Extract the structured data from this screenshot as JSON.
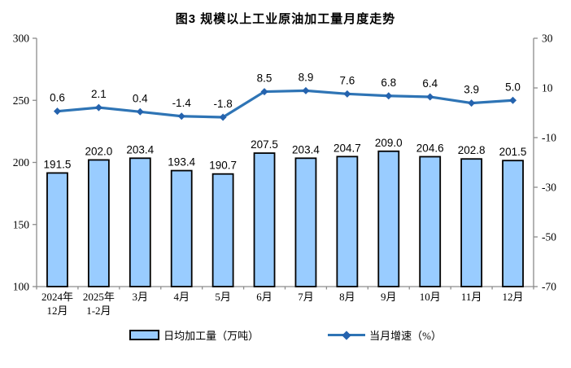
{
  "title": "图3  规模以上工业原油加工量月度走势",
  "chart_data": {
    "type": "bar",
    "subtype": "bar+line combo, dual y-axes",
    "categories": [
      "2024年\n12月",
      "2025年\n1-2月",
      "3月",
      "4月",
      "5月",
      "6月",
      "7月",
      "8月",
      "9月",
      "10月",
      "11月",
      "12月"
    ],
    "series": [
      {
        "name": "日均加工量（万吨）",
        "type": "bar",
        "axis": "left",
        "values": [
          191.5,
          202.0,
          203.4,
          193.4,
          190.7,
          207.5,
          203.4,
          204.7,
          209.0,
          204.6,
          202.8,
          201.5
        ],
        "labels": [
          "191.5",
          "202.0",
          "203.4",
          "193.4",
          "190.7",
          "207.5",
          "203.4",
          "204.7",
          "209.0",
          "204.6",
          "202.8",
          "201.5"
        ]
      },
      {
        "name": "当月增速（%）",
        "type": "line",
        "axis": "right",
        "values": [
          0.6,
          2.1,
          0.4,
          -1.4,
          -1.8,
          8.5,
          8.9,
          7.6,
          6.8,
          6.4,
          3.9,
          5.0
        ],
        "labels": [
          "0.6",
          "2.1",
          "0.4",
          "-1.4",
          "-1.8",
          "8.5",
          "8.9",
          "7.6",
          "6.8",
          "6.4",
          "3.9",
          "5.0"
        ]
      }
    ],
    "left_axis": {
      "min": 100,
      "max": 300,
      "ticks": [
        300,
        250,
        200,
        150,
        100
      ]
    },
    "right_axis": {
      "min": -70,
      "max": 30,
      "ticks": [
        30,
        10,
        -10,
        -30,
        -50,
        -70
      ]
    },
    "grid": false,
    "legend_position": "bottom",
    "title": "图3  规模以上工业原油加工量月度走势"
  },
  "legend": {
    "bar_label": "日均加工量（万吨）",
    "line_label": "当月增速（%）"
  },
  "colors": {
    "bar_fill": "#99CCFF",
    "bar_stroke": "#000000",
    "line": "#2E74B5",
    "marker": "#2563AE",
    "axis": "#8C8C8C",
    "text": "#000000"
  }
}
